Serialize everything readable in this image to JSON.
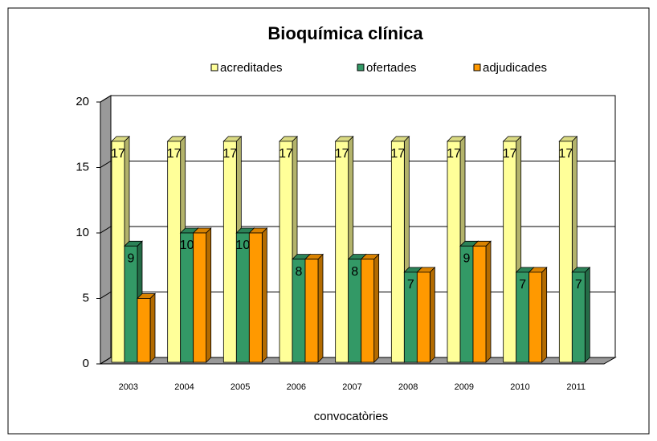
{
  "chart_data": {
    "type": "bar3d",
    "title": "Bioquímica clínica",
    "categories": [
      "2003",
      "2004",
      "2005",
      "2006",
      "2007",
      "2008",
      "2009",
      "2010",
      "2011"
    ],
    "series": [
      {
        "name": "acreditades",
        "color": "#ffff99",
        "values": [
          17,
          17,
          17,
          17,
          17,
          17,
          17,
          17,
          17
        ],
        "labels": true
      },
      {
        "name": "ofertades",
        "color": "#339966",
        "values": [
          9,
          10,
          10,
          8,
          8,
          7,
          9,
          7,
          7
        ],
        "labels": true
      },
      {
        "name": "adjudicades",
        "color": "#ff9900",
        "values": [
          5,
          10,
          10,
          8,
          8,
          7,
          9,
          7,
          null
        ],
        "labels": false
      }
    ],
    "xlabel": "convocatòries",
    "ylim": [
      0,
      20
    ],
    "yticks": [
      0,
      5,
      10,
      15,
      20
    ],
    "grid": true,
    "legend": "top"
  }
}
